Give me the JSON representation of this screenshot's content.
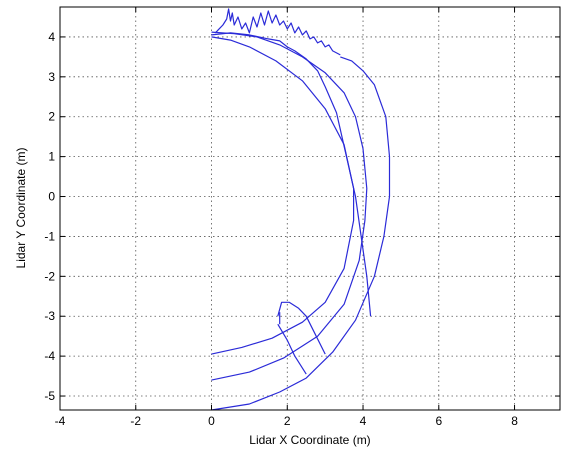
{
  "chart_data": {
    "type": "line",
    "title": "",
    "xlabel": "Lidar X Coordinate (m)",
    "ylabel": "Lidar Y Coordinate (m)",
    "xlim": [
      -4,
      9.2
    ],
    "ylim": [
      -5.35,
      4.75
    ],
    "xticks": [
      -4,
      -2,
      0,
      2,
      4,
      6,
      8
    ],
    "yticks": [
      -5,
      -4,
      -3,
      -2,
      -1,
      0,
      1,
      2,
      3,
      4
    ],
    "grid": true,
    "grid_style": "dotted",
    "line_color": "#2b2bd8",
    "series": [
      {
        "x": [
          0.0,
          0.5,
          1.0,
          1.5,
          1.8,
          2.0,
          2.2,
          2.5,
          2.8,
          3.0,
          3.3,
          3.8,
          4.1,
          4.2
        ],
        "y": [
          4.05,
          4.1,
          4.05,
          3.95,
          3.9,
          3.75,
          3.65,
          3.45,
          3.15,
          2.75,
          2.1,
          0.0,
          -2.0,
          -3.0
        ]
      },
      {
        "x": [
          0.0,
          0.8,
          1.6,
          2.4,
          3.0,
          3.5,
          3.75,
          3.75,
          3.5,
          3.0,
          2.4,
          1.7,
          1.0,
          0.5,
          0.0
        ],
        "y": [
          -3.95,
          -3.78,
          -3.55,
          -3.15,
          -2.65,
          -1.8,
          -0.6,
          0.2,
          1.3,
          2.2,
          2.9,
          3.4,
          3.75,
          3.92,
          4.0
        ]
      },
      {
        "x": [
          0.0,
          1.0,
          1.9,
          2.8,
          3.5,
          3.9,
          4.05,
          4.1,
          4.0,
          3.8,
          3.5,
          3.0,
          2.4,
          1.8,
          1.2,
          0.6,
          0.0
        ],
        "y": [
          -4.6,
          -4.4,
          -4.05,
          -3.5,
          -2.7,
          -1.6,
          -0.6,
          0.2,
          1.2,
          2.0,
          2.6,
          3.1,
          3.5,
          3.8,
          4.0,
          4.08,
          4.12
        ]
      },
      {
        "x": [
          0.0,
          1.0,
          1.8,
          2.5,
          3.2,
          3.8,
          4.3,
          4.55,
          4.7,
          4.7,
          4.6,
          4.3,
          4.0,
          3.7,
          3.4
        ],
        "y": [
          -5.35,
          -5.2,
          -4.9,
          -4.55,
          -3.9,
          -3.1,
          -2.0,
          -1.0,
          0.0,
          1.0,
          2.0,
          2.8,
          3.15,
          3.4,
          3.5
        ]
      },
      {
        "x": [
          1.75,
          1.85,
          2.05,
          2.3,
          2.5,
          3.0
        ],
        "y": [
          -3.0,
          -2.65,
          -2.65,
          -2.8,
          -3.0,
          -3.95
        ]
      },
      {
        "x": [
          1.75,
          2.0,
          2.2,
          2.5
        ],
        "y": [
          -3.2,
          -3.6,
          -4.0,
          -4.45
        ]
      },
      {
        "x": [
          1.8,
          1.8
        ],
        "y": [
          -3.2,
          -2.9
        ]
      },
      {
        "x": [
          0.1,
          0.2,
          0.3,
          0.4,
          0.45,
          0.5,
          0.55,
          0.6,
          0.7,
          0.8,
          0.9,
          1.0,
          1.1,
          1.2,
          1.3,
          1.4,
          1.5,
          1.6,
          1.7,
          1.8,
          1.9,
          2.0,
          2.1,
          2.2,
          2.3,
          2.4,
          2.5,
          2.6,
          2.7,
          2.8,
          2.9,
          3.0,
          3.1,
          3.2,
          3.3,
          3.4
        ],
        "y": [
          4.1,
          4.2,
          4.3,
          4.45,
          4.7,
          4.4,
          4.6,
          4.3,
          4.5,
          4.2,
          4.35,
          4.1,
          4.5,
          4.25,
          4.6,
          4.3,
          4.65,
          4.35,
          4.55,
          4.3,
          4.4,
          4.2,
          4.35,
          4.1,
          4.25,
          4.05,
          4.15,
          3.95,
          4.0,
          3.85,
          3.9,
          3.75,
          3.8,
          3.65,
          3.6,
          3.55
        ]
      }
    ]
  }
}
